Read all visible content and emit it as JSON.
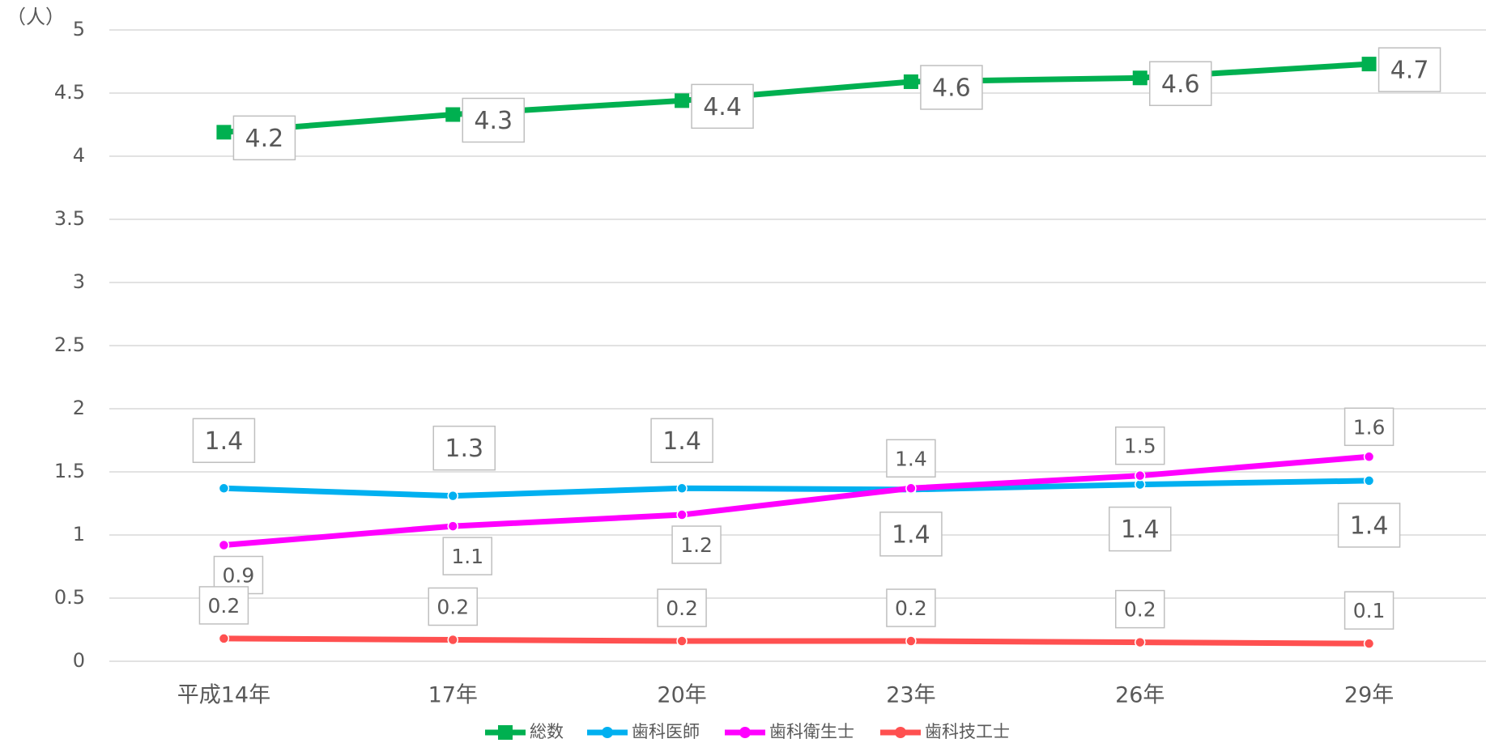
{
  "chart_data": {
    "type": "line",
    "y_label": "（人）",
    "categories": [
      "平成14年",
      "17年",
      "20年",
      "23年",
      "26年",
      "29年"
    ],
    "ylim": [
      0,
      5
    ],
    "yticks": [
      0,
      0.5,
      1,
      1.5,
      2,
      2.5,
      3,
      3.5,
      4,
      4.5,
      5
    ],
    "grid": true,
    "legend": "bottom",
    "series": [
      {
        "name": "総数",
        "color": "#00b050",
        "marker": "square",
        "values": [
          4.19,
          4.33,
          4.44,
          4.59,
          4.62,
          4.73
        ],
        "value_labels": [
          "4.2",
          "4.3",
          "4.4",
          "4.6",
          "4.6",
          "4.7"
        ]
      },
      {
        "name": "歯科医師",
        "color": "#00b0f0",
        "marker": "circle",
        "values": [
          1.37,
          1.31,
          1.37,
          1.36,
          1.4,
          1.43
        ],
        "value_labels": [
          "1.4",
          "1.3",
          "1.4",
          "1.4",
          "1.4",
          "1.4"
        ]
      },
      {
        "name": "歯科衛生士",
        "color": "#ff00ff",
        "marker": "circle",
        "values": [
          0.92,
          1.07,
          1.16,
          1.37,
          1.47,
          1.62
        ],
        "value_labels": [
          "0.9",
          "1.1",
          "1.2",
          "1.4",
          "1.5",
          "1.6"
        ]
      },
      {
        "name": "歯科技工士",
        "color": "#ff5050",
        "marker": "circle",
        "values": [
          0.18,
          0.17,
          0.16,
          0.16,
          0.15,
          0.14
        ],
        "value_labels": [
          "0.2",
          "0.2",
          "0.2",
          "0.2",
          "0.2",
          "0.1"
        ]
      }
    ]
  }
}
